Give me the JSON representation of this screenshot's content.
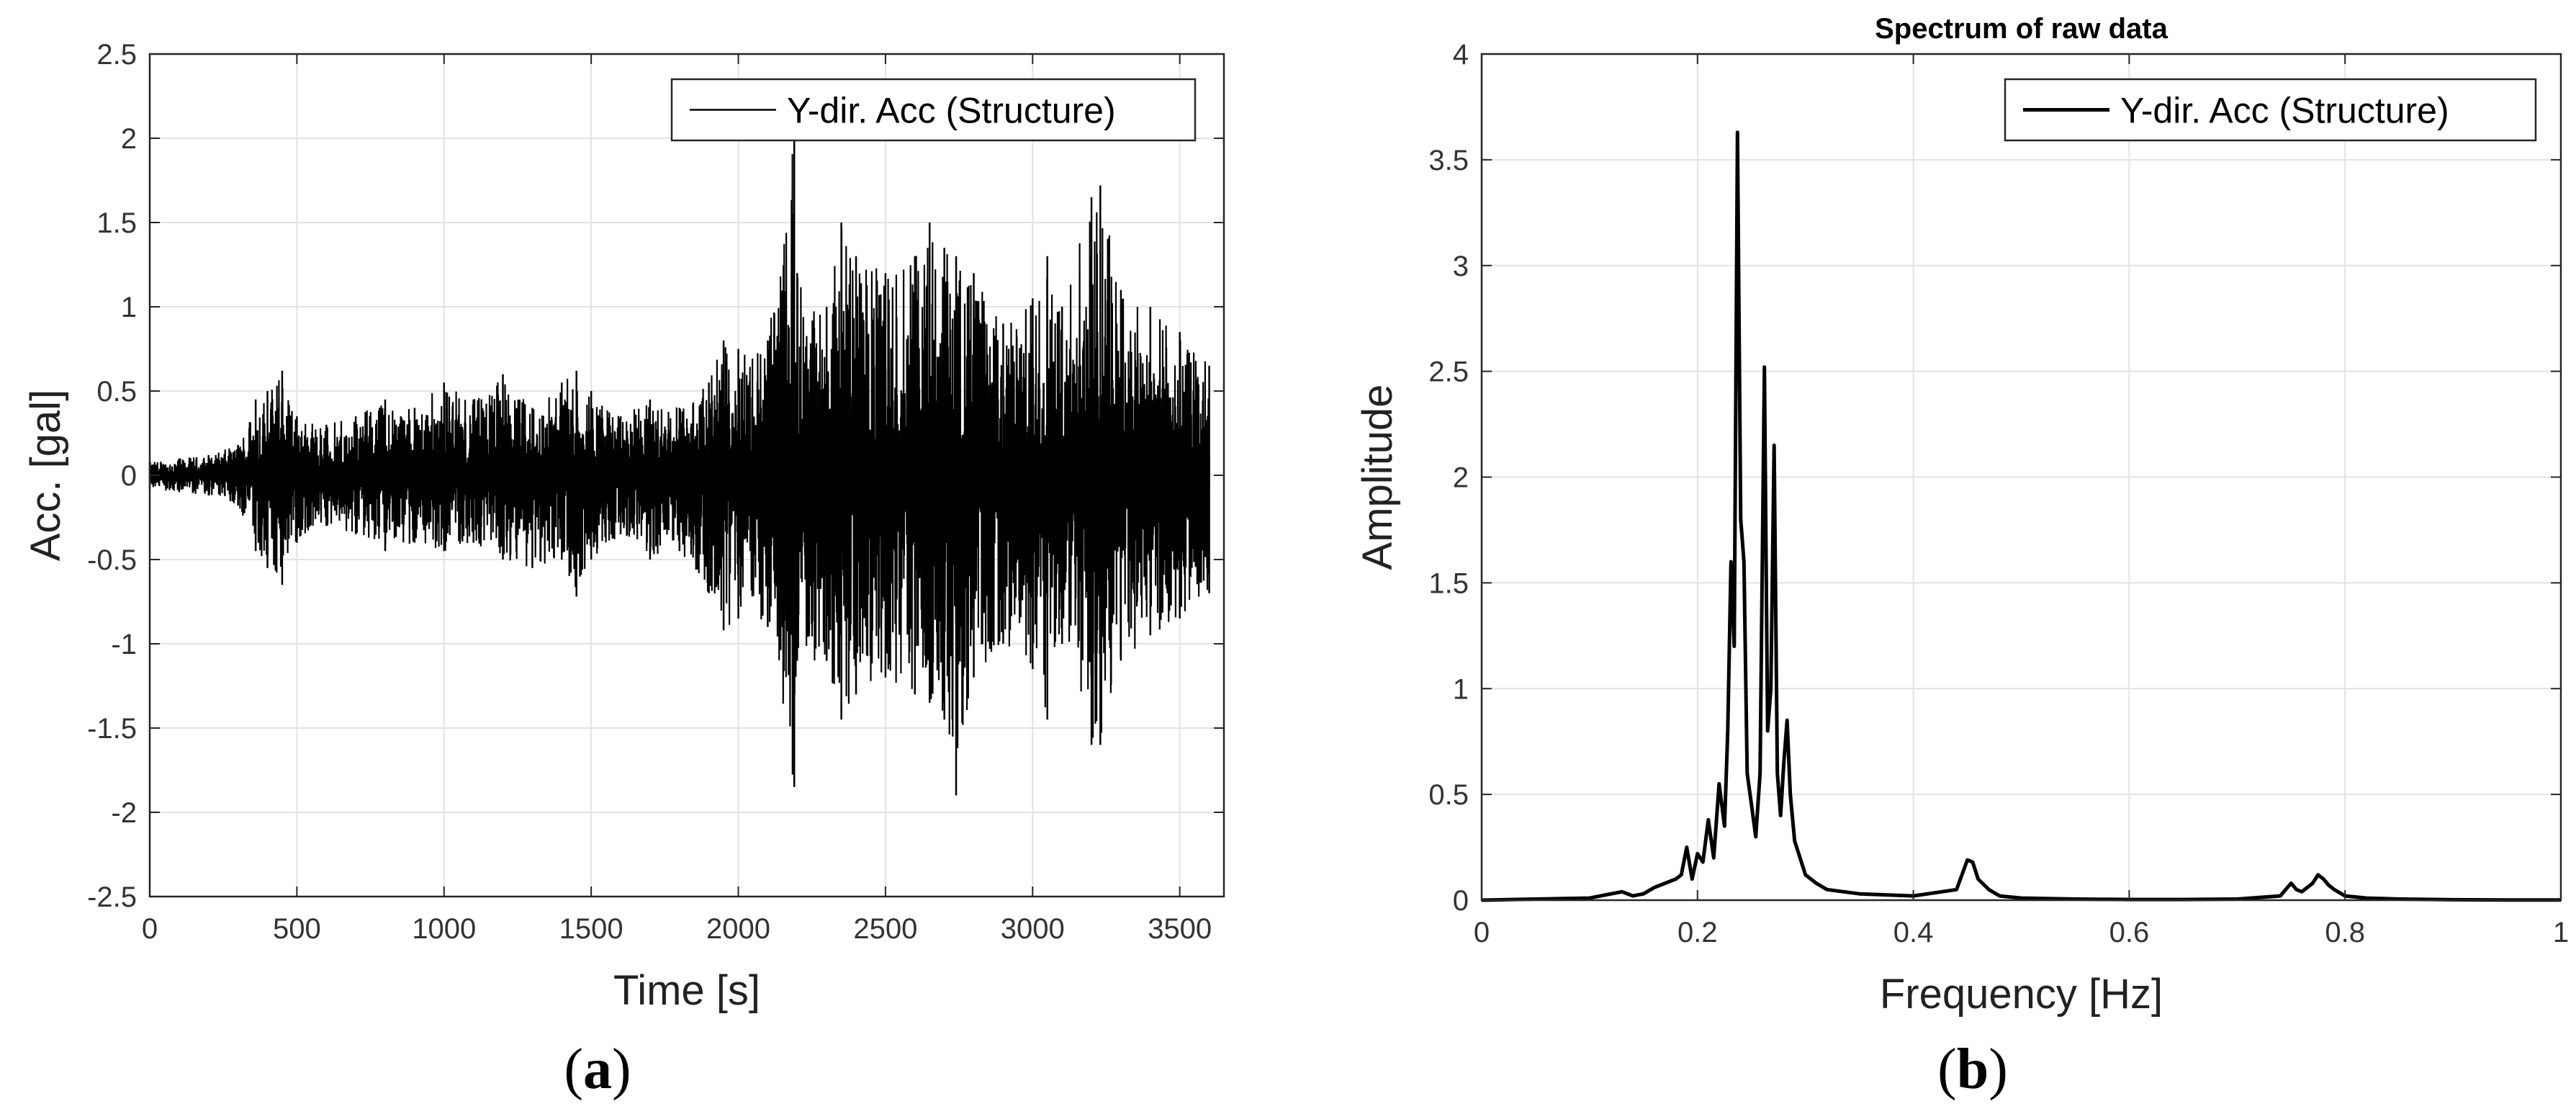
{
  "chart_data": [
    {
      "type": "line",
      "panel_label": "a",
      "title": "",
      "xlabel": "Time [s]",
      "ylabel": "Acc. [gal]",
      "xlim": [
        0,
        3650
      ],
      "ylim": [
        -2.5,
        2.5
      ],
      "x_ticks": [
        0,
        500,
        1000,
        1500,
        2000,
        2500,
        3000,
        3500
      ],
      "y_ticks": [
        -2.5,
        -2,
        -1.5,
        -1,
        -0.5,
        0,
        0.5,
        1,
        1.5,
        2,
        2.5
      ],
      "x_tick_labels": [
        "0",
        "500",
        "1000",
        "1500",
        "2000",
        "2500",
        "3000",
        "3500"
      ],
      "y_tick_labels": [
        "-2.5",
        "-2",
        "-1.5",
        "-1",
        "-0.5",
        "0",
        "0.5",
        "1",
        "1.5",
        "2",
        "2.5"
      ],
      "grid": true,
      "legend_position": "top-right",
      "series": [
        {
          "name": "Y-dir. Acc (Structure)",
          "color": "#000000",
          "envelope_x": [
            0,
            100,
            200,
            300,
            360,
            400,
            450,
            500,
            600,
            700,
            800,
            900,
            1000,
            1100,
            1200,
            1300,
            1400,
            1450,
            1500,
            1600,
            1700,
            1800,
            1900,
            1950,
            2000,
            2100,
            2190,
            2200,
            2300,
            2350,
            2400,
            2500,
            2600,
            2650,
            2700,
            2740,
            2800,
            2900,
            3000,
            3050,
            3100,
            3200,
            3230,
            3300,
            3400,
            3500,
            3600
          ],
          "envelope_upper": [
            0.08,
            0.1,
            0.12,
            0.18,
            0.45,
            0.5,
            0.62,
            0.35,
            0.3,
            0.35,
            0.45,
            0.4,
            0.55,
            0.45,
            0.6,
            0.4,
            0.55,
            0.62,
            0.5,
            0.35,
            0.45,
            0.4,
            0.55,
            0.8,
            0.75,
            0.8,
            2.0,
            1.2,
            1.0,
            1.5,
            1.3,
            1.2,
            1.3,
            1.5,
            1.35,
            1.3,
            1.2,
            0.9,
            1.05,
            1.3,
            1.0,
            1.65,
            1.72,
            1.1,
            1.0,
            0.85,
            0.65
          ],
          "envelope_lower": [
            -0.08,
            -0.1,
            -0.12,
            -0.18,
            -0.45,
            -0.55,
            -0.65,
            -0.4,
            -0.3,
            -0.35,
            -0.45,
            -0.4,
            -0.45,
            -0.4,
            -0.5,
            -0.55,
            -0.5,
            -0.72,
            -0.5,
            -0.35,
            -0.5,
            -0.45,
            -0.7,
            -0.92,
            -0.85,
            -0.9,
            -1.85,
            -1.1,
            -1.1,
            -1.45,
            -1.3,
            -1.2,
            -1.3,
            -1.35,
            -1.45,
            -1.9,
            -1.2,
            -1.0,
            -1.15,
            -1.45,
            -1.0,
            -1.6,
            -1.6,
            -1.1,
            -0.95,
            -0.85,
            -0.7
          ]
        }
      ]
    },
    {
      "type": "line",
      "panel_label": "b",
      "title": "Spectrum of raw data",
      "xlabel": "Frequency [Hz]",
      "ylabel": "Amplitude",
      "xlim": [
        0,
        1
      ],
      "ylim": [
        0,
        4
      ],
      "x_ticks": [
        0,
        0.2,
        0.4,
        0.6,
        0.8,
        1
      ],
      "y_ticks": [
        0,
        0.5,
        1,
        1.5,
        2,
        2.5,
        3,
        3.5,
        4
      ],
      "x_tick_labels": [
        "0",
        "0.2",
        "0.4",
        "0.6",
        "0.8",
        "1"
      ],
      "y_tick_labels": [
        "0",
        "0.5",
        "1",
        "1.5",
        "2",
        "2.5",
        "3",
        "3.5",
        "4"
      ],
      "grid": true,
      "legend_position": "top-right",
      "series": [
        {
          "name": "Y-dir. Acc (Structure)",
          "color": "#000000",
          "x": [
            0,
            0.05,
            0.1,
            0.12,
            0.13,
            0.14,
            0.15,
            0.16,
            0.17,
            0.18,
            0.185,
            0.19,
            0.195,
            0.2,
            0.205,
            0.21,
            0.215,
            0.22,
            0.225,
            0.228,
            0.231,
            0.234,
            0.237,
            0.24,
            0.243,
            0.246,
            0.25,
            0.254,
            0.258,
            0.262,
            0.265,
            0.268,
            0.271,
            0.274,
            0.277,
            0.28,
            0.283,
            0.286,
            0.29,
            0.3,
            0.31,
            0.32,
            0.35,
            0.4,
            0.44,
            0.45,
            0.455,
            0.46,
            0.47,
            0.48,
            0.5,
            0.55,
            0.6,
            0.65,
            0.7,
            0.74,
            0.75,
            0.755,
            0.76,
            0.77,
            0.775,
            0.78,
            0.785,
            0.79,
            0.8,
            0.82,
            0.85,
            0.9,
            0.95,
            1.0
          ],
          "y": [
            0,
            0.005,
            0.01,
            0.03,
            0.04,
            0.02,
            0.03,
            0.06,
            0.08,
            0.1,
            0.12,
            0.25,
            0.1,
            0.22,
            0.18,
            0.38,
            0.2,
            0.55,
            0.35,
            0.8,
            1.6,
            1.2,
            3.63,
            1.8,
            1.6,
            0.6,
            0.45,
            0.3,
            0.6,
            2.52,
            0.8,
            1.0,
            2.15,
            0.6,
            0.4,
            0.65,
            0.85,
            0.5,
            0.28,
            0.12,
            0.08,
            0.05,
            0.03,
            0.02,
            0.05,
            0.19,
            0.18,
            0.1,
            0.05,
            0.02,
            0.01,
            0.005,
            0.003,
            0.003,
            0.005,
            0.02,
            0.08,
            0.05,
            0.04,
            0.08,
            0.12,
            0.1,
            0.07,
            0.05,
            0.02,
            0.01,
            0.005,
            0.002,
            0.001,
            0.001
          ]
        }
      ]
    }
  ]
}
